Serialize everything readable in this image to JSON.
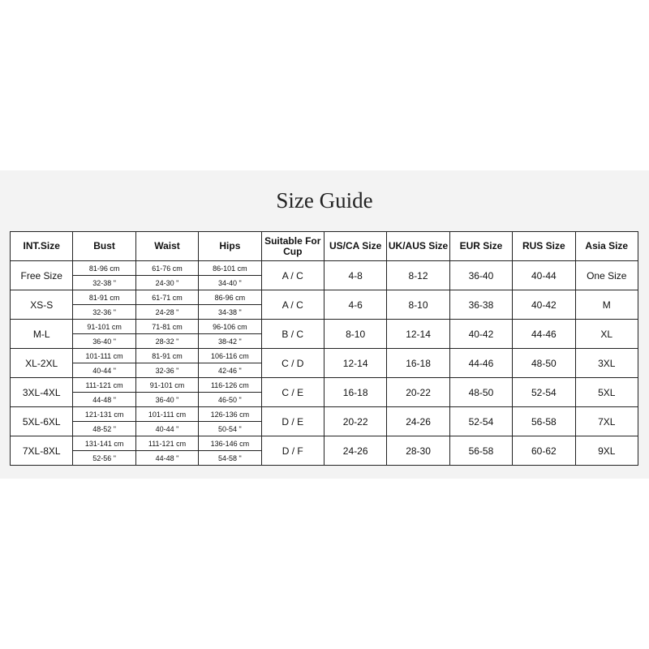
{
  "title": "Size Guide",
  "headers": [
    "INT.Size",
    "Bust",
    "Waist",
    "Hips",
    "Suitable For Cup",
    "US/CA Size",
    "UK/AUS Size",
    "EUR Size",
    "RUS Size",
    "Asia Size"
  ],
  "rows": [
    {
      "size": "Free Size",
      "bust_cm": "81-96 cm",
      "bust_in": "32-38 \"",
      "waist_cm": "61-76 cm",
      "waist_in": "24-30 \"",
      "hips_cm": "86-101 cm",
      "hips_in": "34-40 \"",
      "cup": "A / C",
      "us": "4-8",
      "uk": "8-12",
      "eur": "36-40",
      "rus": "40-44",
      "asia": "One Size"
    },
    {
      "size": "XS-S",
      "bust_cm": "81-91 cm",
      "bust_in": "32-36 \"",
      "waist_cm": "61-71 cm",
      "waist_in": "24-28 \"",
      "hips_cm": "86-96 cm",
      "hips_in": "34-38 \"",
      "cup": "A / C",
      "us": "4-6",
      "uk": "8-10",
      "eur": "36-38",
      "rus": "40-42",
      "asia": "M"
    },
    {
      "size": "M-L",
      "bust_cm": "91-101 cm",
      "bust_in": "36-40 \"",
      "waist_cm": "71-81 cm",
      "waist_in": "28-32 \"",
      "hips_cm": "96-106 cm",
      "hips_in": "38-42 \"",
      "cup": "B / C",
      "us": "8-10",
      "uk": "12-14",
      "eur": "40-42",
      "rus": "44-46",
      "asia": "XL"
    },
    {
      "size": "XL-2XL",
      "bust_cm": "101-111 cm",
      "bust_in": "40-44 \"",
      "waist_cm": "81-91 cm",
      "waist_in": "32-36 \"",
      "hips_cm": "106-116 cm",
      "hips_in": "42-46 \"",
      "cup": "C / D",
      "us": "12-14",
      "uk": "16-18",
      "eur": "44-46",
      "rus": "48-50",
      "asia": "3XL"
    },
    {
      "size": "3XL-4XL",
      "bust_cm": "111-121 cm",
      "bust_in": "44-48 \"",
      "waist_cm": "91-101 cm",
      "waist_in": "36-40 \"",
      "hips_cm": "116-126 cm",
      "hips_in": "46-50 \"",
      "cup": "C / E",
      "us": "16-18",
      "uk": "20-22",
      "eur": "48-50",
      "rus": "52-54",
      "asia": "5XL"
    },
    {
      "size": "5XL-6XL",
      "bust_cm": "121-131 cm",
      "bust_in": "48-52 \"",
      "waist_cm": "101-111 cm",
      "waist_in": "40-44 \"",
      "hips_cm": "126-136 cm",
      "hips_in": "50-54 \"",
      "cup": "D / E",
      "us": "20-22",
      "uk": "24-26",
      "eur": "52-54",
      "rus": "56-58",
      "asia": "7XL"
    },
    {
      "size": "7XL-8XL",
      "bust_cm": "131-141 cm",
      "bust_in": "52-56 \"",
      "waist_cm": "111-121 cm",
      "waist_in": "44-48 \"",
      "hips_cm": "136-146 cm",
      "hips_in": "54-58 \"",
      "cup": "D / F",
      "us": "24-26",
      "uk": "28-30",
      "eur": "56-58",
      "rus": "60-62",
      "asia": "9XL"
    }
  ]
}
